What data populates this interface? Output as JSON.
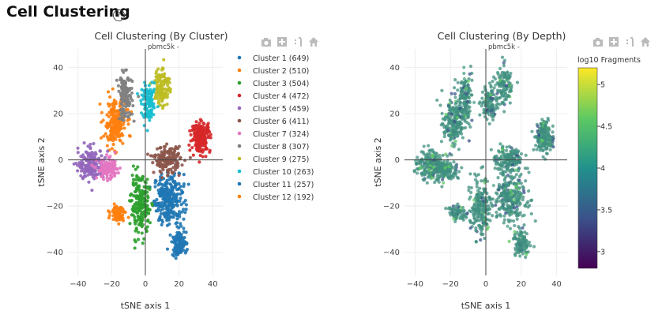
{
  "header": {
    "title": "Cell Clustering",
    "help_icon": "question-circle-icon"
  },
  "toolbar_icons": [
    "camera-icon",
    "plus-box-icon",
    "autoscale-icon",
    "home-icon"
  ],
  "chart_data": [
    {
      "type": "scatter",
      "title": "Cell Clustering (By Cluster)",
      "subtitle": "pbmc5k -",
      "xlabel": "tSNE axis 1",
      "ylabel": "tSNE axis 2",
      "xlim": [
        -46,
        46
      ],
      "ylim": [
        -50,
        48
      ],
      "xticks": [
        -40,
        -20,
        0,
        20,
        40
      ],
      "yticks": [
        -40,
        -20,
        0,
        20,
        40
      ],
      "xtick_labels": [
        "−40",
        "−20",
        "0",
        "20",
        "40"
      ],
      "ytick_labels": [
        "−40",
        "−20",
        "0",
        "20",
        "40"
      ],
      "grid": true,
      "legend_position": "right",
      "series": [
        {
          "name": "Cluster 1 (649)",
          "color": "#1f77b4",
          "count": 649,
          "center": [
            14,
            -17
          ]
        },
        {
          "name": "Cluster 2 (510)",
          "color": "#ff7f0e",
          "count": 510,
          "center": [
            -18,
            16
          ]
        },
        {
          "name": "Cluster 3 (504)",
          "color": "#2ca02c",
          "count": 504,
          "center": [
            -3,
            -20
          ]
        },
        {
          "name": "Cluster 4 (472)",
          "color": "#d62728",
          "count": 472,
          "center": [
            33,
            10
          ]
        },
        {
          "name": "Cluster 5 (459)",
          "color": "#9467bd",
          "count": 459,
          "center": [
            -32,
            -2
          ]
        },
        {
          "name": "Cluster 6 (411)",
          "color": "#8c564b",
          "count": 411,
          "center": [
            13,
            0
          ]
        },
        {
          "name": "Cluster 7 (324)",
          "color": "#e377c2",
          "count": 324,
          "center": [
            -22,
            -4
          ]
        },
        {
          "name": "Cluster 8 (307)",
          "color": "#7f7f7f",
          "count": 307,
          "center": [
            -12,
            27
          ]
        },
        {
          "name": "Cluster 9 (275)",
          "color": "#bcbd22",
          "count": 275,
          "center": [
            10,
            32
          ]
        },
        {
          "name": "Cluster 10 (263)",
          "color": "#17becf",
          "count": 263,
          "center": [
            2,
            24
          ]
        },
        {
          "name": "Cluster 11 (257)",
          "color": "#1f77b4",
          "count": 257,
          "center": [
            20,
            -36
          ]
        },
        {
          "name": "Cluster 12 (192)",
          "color": "#ff7f0e",
          "count": 192,
          "center": [
            -16,
            -23
          ]
        }
      ]
    },
    {
      "type": "scatter",
      "title": "Cell Clustering (By Depth)",
      "subtitle": "pbmc5k -",
      "xlabel": "tSNE axis 1",
      "ylabel": "tSNE axis 2",
      "xlim": [
        -46,
        46
      ],
      "ylim": [
        -50,
        48
      ],
      "xticks": [
        -40,
        -20,
        0,
        20,
        40
      ],
      "yticks": [
        -40,
        -20,
        0,
        20,
        40
      ],
      "xtick_labels": [
        "−40",
        "−20",
        "0",
        "20",
        "40"
      ],
      "ytick_labels": [
        "−40",
        "−20",
        "0",
        "20",
        "40"
      ],
      "grid": true,
      "colorbar": {
        "title": "log10 Fragments",
        "range": [
          2.8,
          5.2
        ],
        "ticks": [
          3,
          3.5,
          4,
          4.5,
          5
        ],
        "tick_labels": [
          "3",
          "3.5",
          "4",
          "4.5",
          "5"
        ],
        "colorscale": [
          "#440154",
          "#3b528b",
          "#21918c",
          "#5ec962",
          "#fde725"
        ]
      },
      "color_value_typical": 4.2
    }
  ]
}
